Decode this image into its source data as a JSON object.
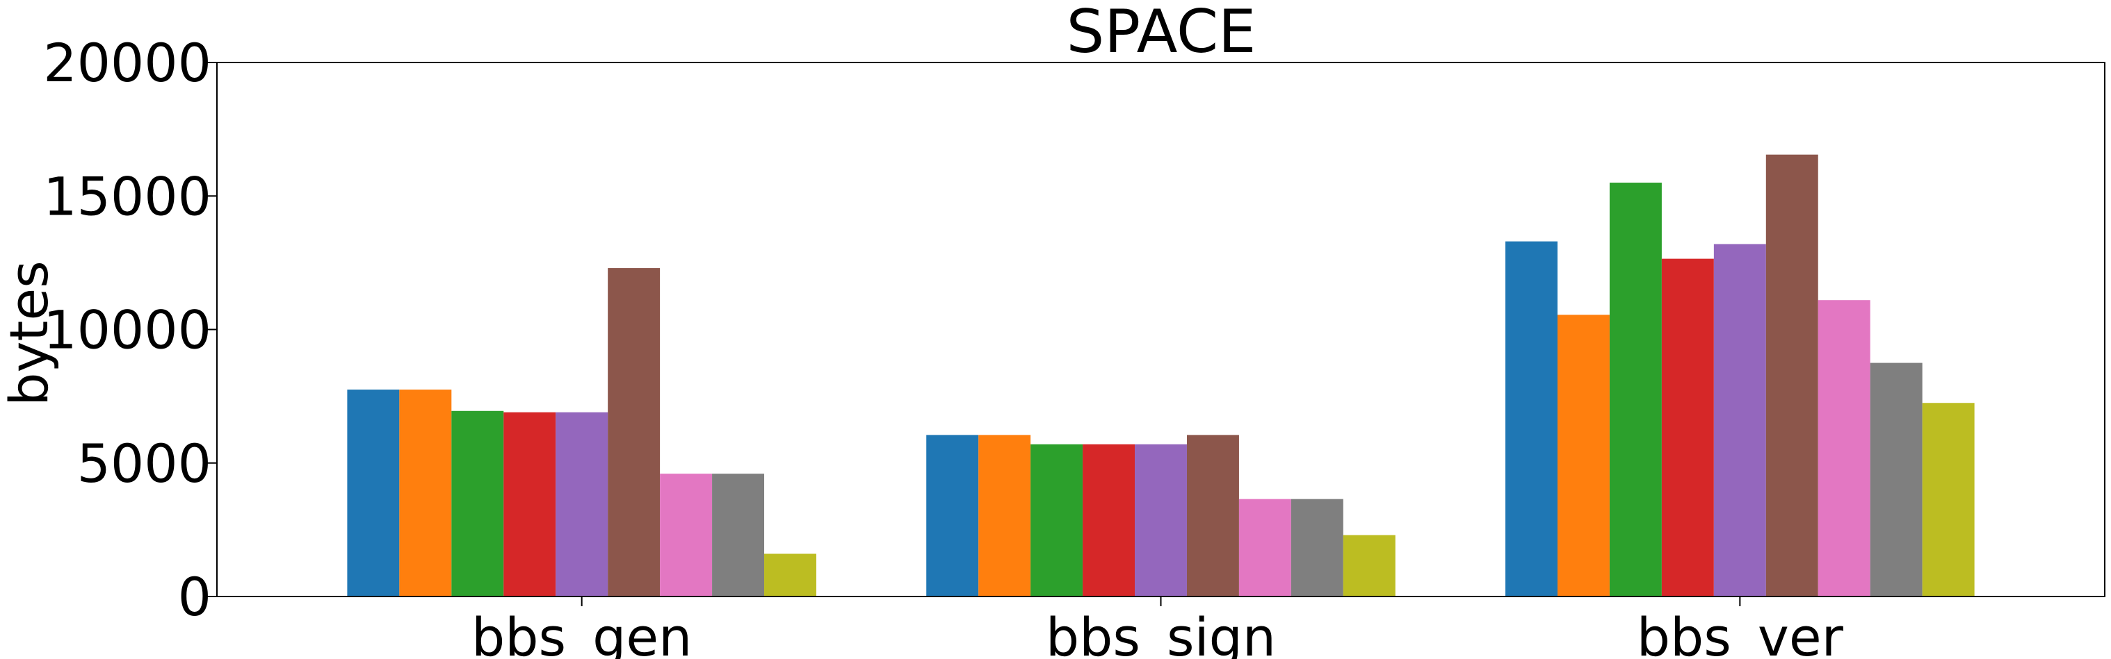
{
  "chart_data": {
    "type": "bar",
    "title": "SPACE",
    "xlabel": "",
    "ylabel": "bytes",
    "ylim": [
      0,
      20000
    ],
    "yticks": [
      "0",
      "5000",
      "10000",
      "15000",
      "20000"
    ],
    "categories": [
      "bbs_gen",
      "bbs_sign",
      "bbs_ver"
    ],
    "grid": false,
    "legend": "none",
    "series": [
      {
        "color": "#1f77b4",
        "values": [
          7750,
          6050,
          13300
        ]
      },
      {
        "color": "#ff7f0e",
        "values": [
          7750,
          6050,
          10550
        ]
      },
      {
        "color": "#2ca02c",
        "values": [
          6950,
          5700,
          15500
        ]
      },
      {
        "color": "#d62728",
        "values": [
          6900,
          5700,
          12650
        ]
      },
      {
        "color": "#9467bd",
        "values": [
          6900,
          5700,
          13200
        ]
      },
      {
        "color": "#8c564b",
        "values": [
          12300,
          6050,
          16550
        ]
      },
      {
        "color": "#e377c2",
        "values": [
          4600,
          3650,
          11100
        ]
      },
      {
        "color": "#7f7f7f",
        "values": [
          4600,
          3650,
          8750
        ]
      },
      {
        "color": "#bcbd22",
        "values": [
          1600,
          2300,
          7250
        ]
      }
    ]
  }
}
